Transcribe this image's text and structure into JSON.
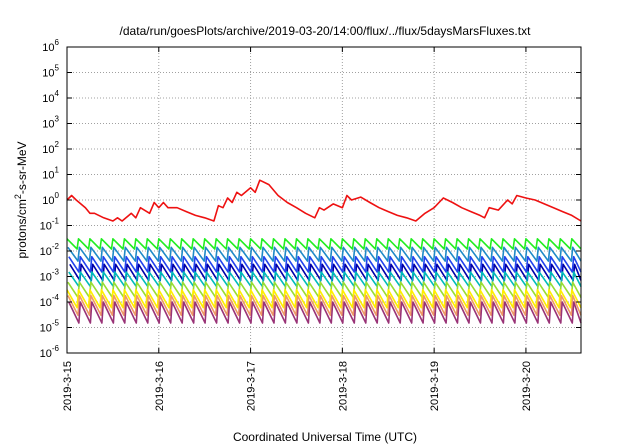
{
  "chart_data": {
    "type": "line",
    "title": "/data/run/goesPlots/archive/2019-03-20/14:00/flux/../flux/5daysMarsFluxes.txt",
    "xlabel": "Coordinated Universal Time (UTC)",
    "ylabel_parts": [
      "protons/cm",
      "2",
      "-s-sr-MeV"
    ],
    "yscale": "log",
    "ylim": [
      1e-06,
      1000000.0
    ],
    "xlim_days": [
      0,
      5.6
    ],
    "xticks": [
      {
        "day": 0,
        "label": "2019-3-15"
      },
      {
        "day": 1,
        "label": "2019-3-16"
      },
      {
        "day": 2,
        "label": "2019-3-17"
      },
      {
        "day": 3,
        "label": "2019-3-18"
      },
      {
        "day": 4,
        "label": "2019-3-19"
      },
      {
        "day": 5,
        "label": "2019-3-20"
      }
    ],
    "yticks": [
      {
        "exp": -6,
        "base": "10",
        "sup": "-6"
      },
      {
        "exp": -5,
        "base": "10",
        "sup": "-5"
      },
      {
        "exp": -4,
        "base": "10",
        "sup": "-4"
      },
      {
        "exp": -3,
        "base": "10",
        "sup": "-3"
      },
      {
        "exp": -2,
        "base": "10",
        "sup": "-2"
      },
      {
        "exp": -1,
        "base": "10",
        "sup": "-1"
      },
      {
        "exp": 0,
        "base": "10",
        "sup": "0"
      },
      {
        "exp": 1,
        "base": "10",
        "sup": "1"
      },
      {
        "exp": 2,
        "base": "10",
        "sup": "2"
      },
      {
        "exp": 3,
        "base": "10",
        "sup": "3"
      },
      {
        "exp": 4,
        "base": "10",
        "sup": "4"
      },
      {
        "exp": 5,
        "base": "10",
        "sup": "5"
      },
      {
        "exp": 6,
        "base": "10",
        "sup": "6"
      }
    ],
    "grid": true,
    "series": [
      {
        "color": "#ee1111",
        "x": [
          0.0,
          0.05,
          0.1,
          0.2,
          0.25,
          0.3,
          0.4,
          0.5,
          0.55,
          0.6,
          0.7,
          0.75,
          0.8,
          0.9,
          0.95,
          1.0,
          1.05,
          1.1,
          1.2,
          1.3,
          1.4,
          1.5,
          1.6,
          1.65,
          1.7,
          1.75,
          1.8,
          1.85,
          1.9,
          2.0,
          2.05,
          2.1,
          2.2,
          2.3,
          2.4,
          2.5,
          2.6,
          2.7,
          2.75,
          2.8,
          2.9,
          3.0,
          3.05,
          3.1,
          3.2,
          3.3,
          3.4,
          3.5,
          3.6,
          3.7,
          3.8,
          3.9,
          4.0,
          4.1,
          4.2,
          4.3,
          4.4,
          4.5,
          4.55,
          4.6,
          4.7,
          4.8,
          4.85,
          4.9,
          5.0,
          5.1,
          5.2,
          5.3,
          5.4,
          5.5,
          5.6
        ],
        "y": [
          1.0,
          1.5,
          1.0,
          0.5,
          0.3,
          0.3,
          0.2,
          0.15,
          0.2,
          0.15,
          0.3,
          0.2,
          0.5,
          0.3,
          0.8,
          0.5,
          0.8,
          0.5,
          0.5,
          0.35,
          0.25,
          0.2,
          0.15,
          0.6,
          0.5,
          1.2,
          0.8,
          2.0,
          1.5,
          3.0,
          2.0,
          6.0,
          4.0,
          1.5,
          0.8,
          0.5,
          0.3,
          0.2,
          0.5,
          0.4,
          0.7,
          0.5,
          1.5,
          1.0,
          1.3,
          0.8,
          0.5,
          0.35,
          0.25,
          0.2,
          0.15,
          0.3,
          0.5,
          1.2,
          0.8,
          0.5,
          0.35,
          0.25,
          0.2,
          0.5,
          0.4,
          1.0,
          0.7,
          1.5,
          1.2,
          1.0,
          0.7,
          0.5,
          0.35,
          0.25,
          0.15
        ]
      },
      {
        "color": "#22ee22",
        "peak": 0.03,
        "trough": 0.012,
        "offset": 0.0
      },
      {
        "color": "#1f8ac8",
        "peak": 0.014,
        "trough": 0.004,
        "offset": 0.01
      },
      {
        "color": "#2244ee",
        "peak": 0.006,
        "trough": 0.0015,
        "offset": 0.02
      },
      {
        "color": "#0000aa",
        "peak": 0.003,
        "trough": 0.0007,
        "offset": 0.03
      },
      {
        "color": "#00bbbb",
        "peak": 0.0015,
        "trough": 0.0004,
        "offset": 0.02
      },
      {
        "color": "#99dd33",
        "peak": 0.0006,
        "trough": 0.00015,
        "offset": 0.01
      },
      {
        "color": "#ffee00",
        "peak": 0.0003,
        "trough": 6e-05,
        "offset": 0.0
      },
      {
        "color": "#ee9966",
        "peak": 0.00018,
        "trough": 3e-05,
        "offset": 0.01
      },
      {
        "color": "#993377",
        "peak": 0.0001,
        "trough": 1.5e-05,
        "offset": 0.02
      }
    ]
  }
}
